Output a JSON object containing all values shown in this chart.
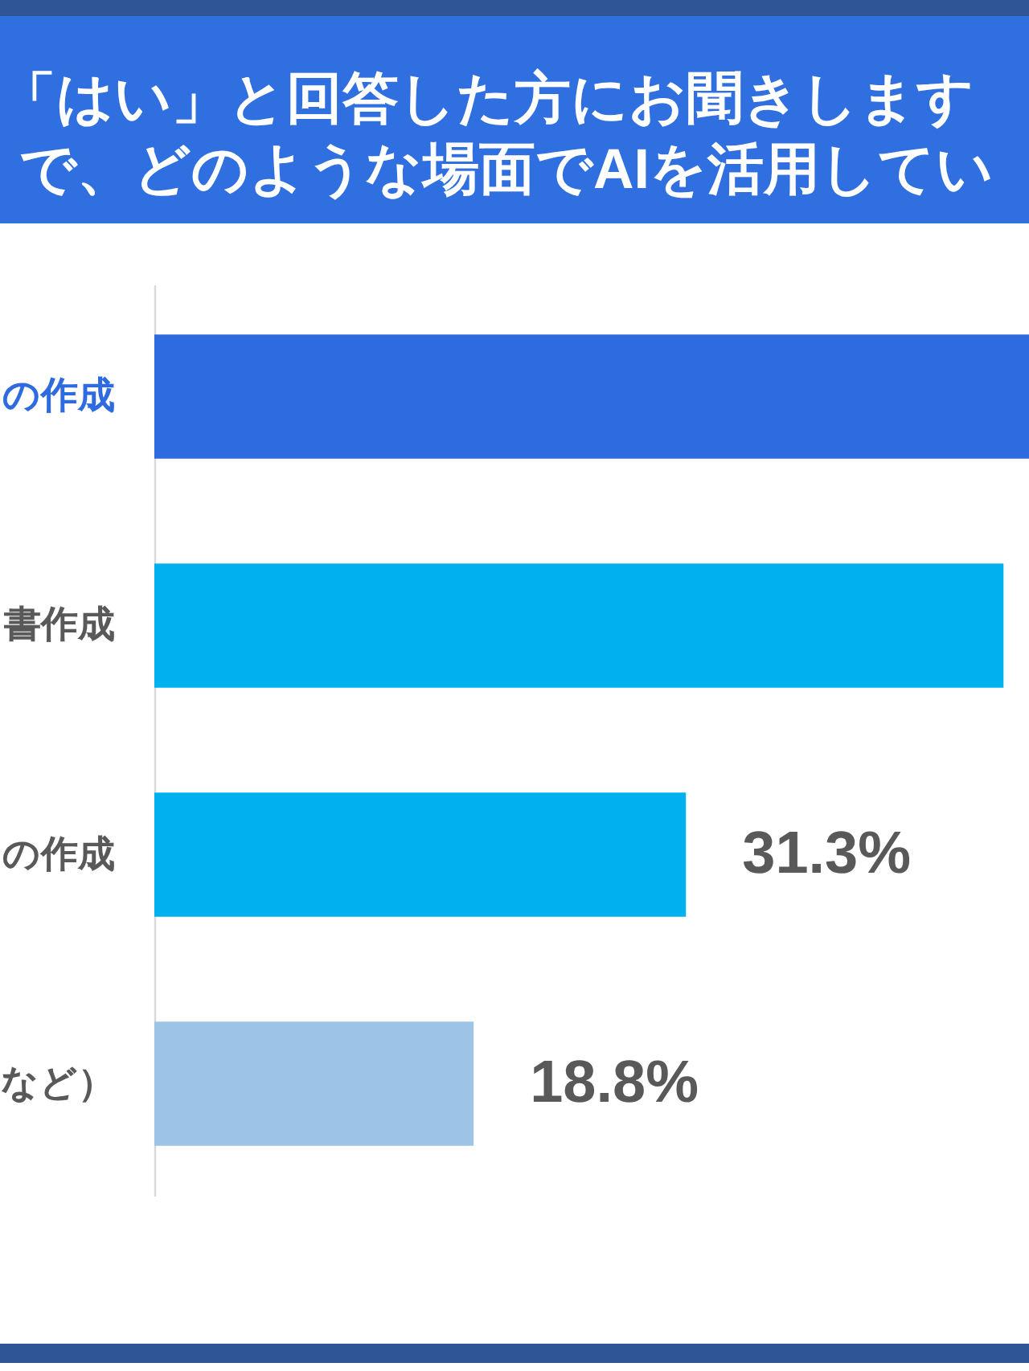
{
  "chart_data": {
    "type": "bar",
    "orientation": "horizontal",
    "title": "「はい」と回答した方にお聞きします",
    "subtitle": "で、どのような場面でAIを活用してい",
    "categories": [
      "の作成",
      "書作成",
      "の作成",
      "など）"
    ],
    "values": [
      51.5,
      50,
      31.3,
      18.8
    ],
    "colors": [
      "#2f6be0",
      "#00b0ef",
      "#00b0ef",
      "#9dc3e6"
    ],
    "value_labels": [
      null,
      null,
      "31.3%",
      "18.8%"
    ],
    "tick_labels": "y"
  }
}
